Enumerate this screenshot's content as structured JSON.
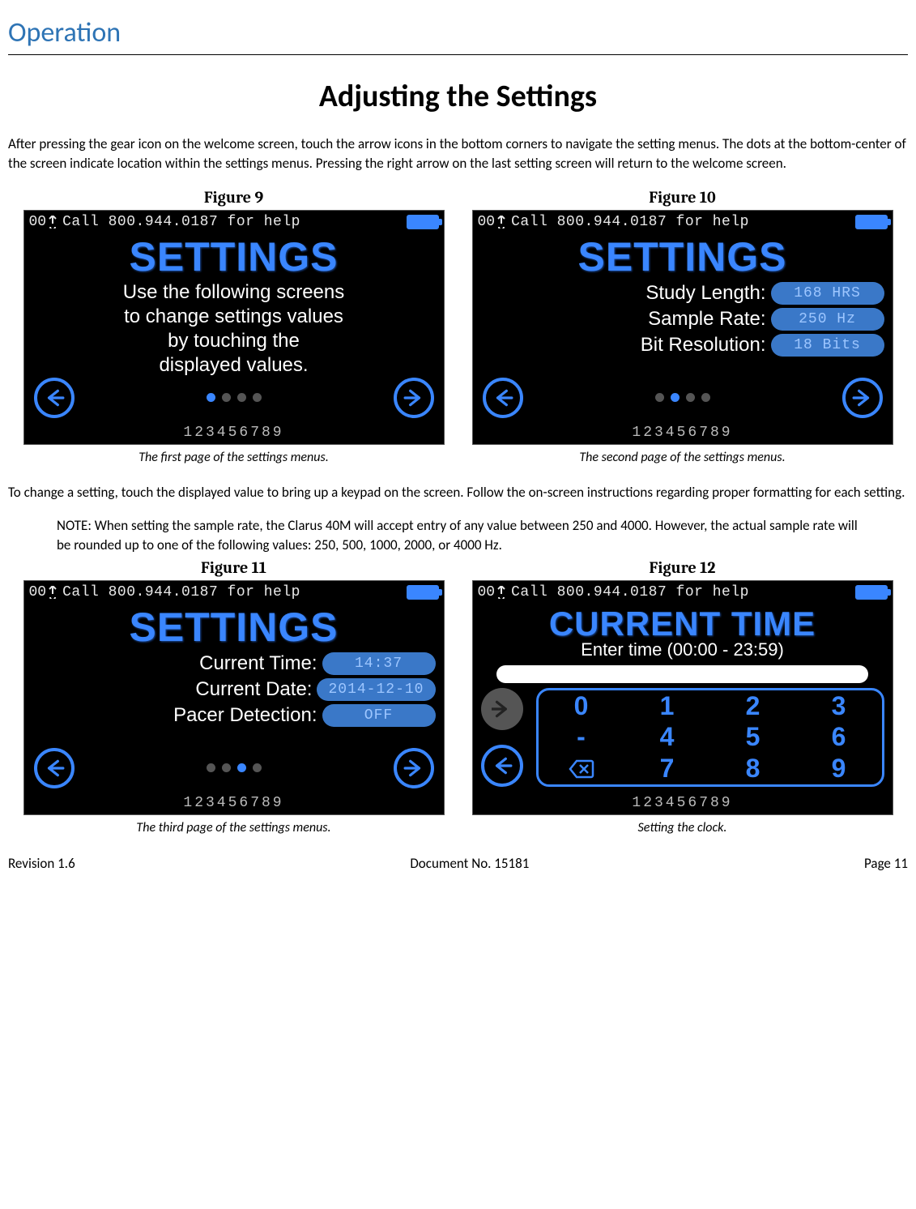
{
  "section_header": "Operation",
  "page_title": "Adjusting the Settings",
  "para1": "After pressing the gear icon on the welcome screen, touch the arrow icons in the bottom corners to navigate the setting menus. The dots at the bottom-center of the screen indicate location within the settings menus. Pressing the right arrow on the last setting screen will return to the welcome screen.",
  "para2": "To change a setting, touch the displayed value to bring up a keypad on the screen. Follow the on-screen instructions regarding proper formatting for each setting.",
  "note": "NOTE: When setting the sample rate, the Clarus 40M will accept entry of any value between 250 and 4000. However, the actual sample rate will be rounded up to one of the following values: 250, 500, 1000, 2000, or 4000 Hz.",
  "status_bar": {
    "left_num": "00",
    "text": "Call 800.944.0187 for help"
  },
  "bottom_digits": "123456789",
  "dots_count": 4,
  "fig9": {
    "label": "Figure 9",
    "title": "SETTINGS",
    "info": "Use the following screens\nto change settings values\nby touching the\ndisplayed values.",
    "active_dot": 0,
    "caption": "The first page of the settings menus."
  },
  "fig10": {
    "label": "Figure 10",
    "title": "SETTINGS",
    "rows": [
      {
        "label": "Study Length:",
        "value": "168 HRS"
      },
      {
        "label": "Sample Rate:",
        "value": "250 Hz"
      },
      {
        "label": "Bit Resolution:",
        "value": "18 Bits"
      }
    ],
    "active_dot": 1,
    "caption": "The second page of the settings menus."
  },
  "fig11": {
    "label": "Figure 11",
    "title": "SETTINGS",
    "rows": [
      {
        "label": "Current Time:",
        "value": "14:37"
      },
      {
        "label": "Current Date:",
        "value": "2014-12-10"
      },
      {
        "label": "Pacer Detection:",
        "value": "OFF"
      }
    ],
    "active_dot": 2,
    "caption": "The third page of the settings menus."
  },
  "fig12": {
    "label": "Figure 12",
    "title": "CURRENT TIME",
    "hint": "Enter time (00:00 - 23:59)",
    "keys": [
      "0",
      "1",
      "2",
      "3",
      "-",
      "4",
      "5",
      "6",
      "DEL",
      "7",
      "8",
      "9"
    ],
    "caption": "Setting the clock."
  },
  "footer": {
    "left": "Revision 1.6",
    "center": "Document No. 15181",
    "right": "Page 11"
  },
  "colors": {
    "accent": "#3a86ff",
    "header": "#2e74b5",
    "pill_bg": "#3a78c8",
    "pill_text": "#9dc6ff"
  }
}
